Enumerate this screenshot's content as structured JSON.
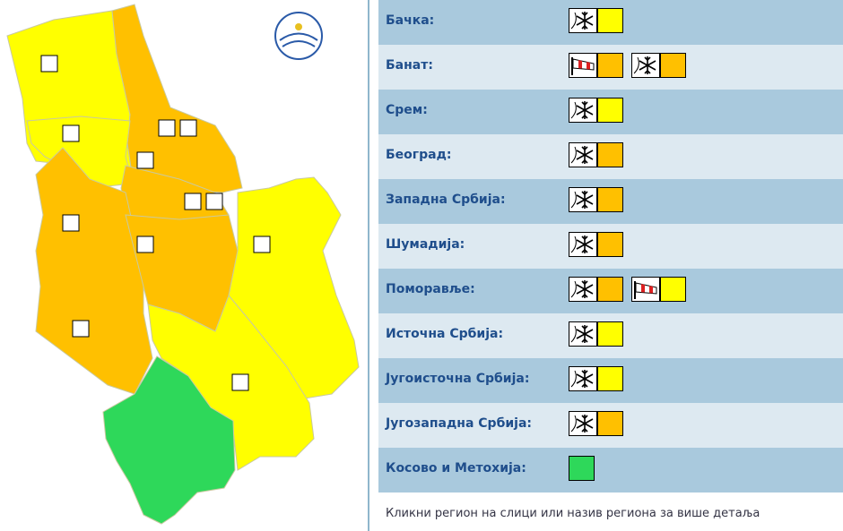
{
  "regions": [
    {
      "name": "Бачка:",
      "warnings": [
        {
          "type": "snow",
          "color": "#ffff00"
        }
      ]
    },
    {
      "name": "Банат:",
      "warnings": [
        {
          "type": "wind",
          "color": "#ffc000"
        },
        {
          "type": "snow",
          "color": "#ffc000"
        }
      ]
    },
    {
      "name": "Срем:",
      "warnings": [
        {
          "type": "snow",
          "color": "#ffff00"
        }
      ]
    },
    {
      "name": "Београд:",
      "warnings": [
        {
          "type": "snow",
          "color": "#ffc000"
        }
      ]
    },
    {
      "name": "Западна Србија:",
      "warnings": [
        {
          "type": "snow",
          "color": "#ffc000"
        }
      ]
    },
    {
      "name": "Шумадија:",
      "warnings": [
        {
          "type": "snow",
          "color": "#ffc000"
        }
      ]
    },
    {
      "name": "Поморавље:",
      "warnings": [
        {
          "type": "snow",
          "color": "#ffc000"
        },
        {
          "type": "wind",
          "color": "#ffff00"
        }
      ]
    },
    {
      "name": "Источна Србија:",
      "warnings": [
        {
          "type": "snow",
          "color": "#ffff00"
        }
      ]
    },
    {
      "name": "Југоисточна Србија:",
      "warnings": [
        {
          "type": "snow",
          "color": "#ffff00"
        }
      ]
    },
    {
      "name": "Југозападна Србија:",
      "warnings": [
        {
          "type": "snow",
          "color": "#ffc000"
        }
      ]
    },
    {
      "name": "Косово и Метохија:",
      "warnings": [
        {
          "color": "#2ed85a"
        }
      ]
    }
  ],
  "footer": "Кликни регион на слици или назив региона за више детаља"
}
